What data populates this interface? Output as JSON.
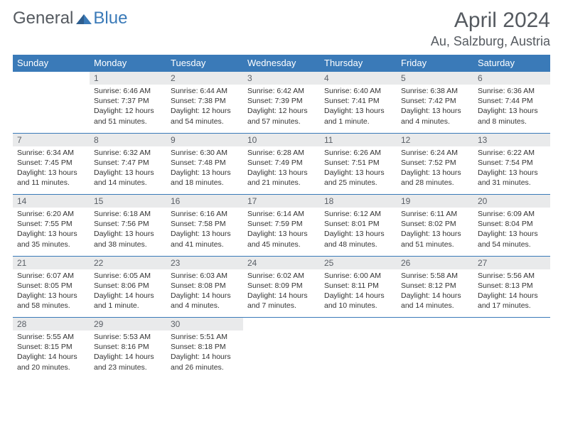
{
  "brand": {
    "part1": "General",
    "part2": "Blue"
  },
  "title": "April 2024",
  "location": "Au, Salzburg, Austria",
  "colors": {
    "header_bg": "#3a7ab8",
    "daynum_bg": "#e9eaeb",
    "text": "#333333"
  },
  "day_headers": [
    "Sunday",
    "Monday",
    "Tuesday",
    "Wednesday",
    "Thursday",
    "Friday",
    "Saturday"
  ],
  "weeks": [
    {
      "nums": [
        "",
        "1",
        "2",
        "3",
        "4",
        "5",
        "6"
      ],
      "cells": [
        {},
        {
          "sr": "Sunrise: 6:46 AM",
          "ss": "Sunset: 7:37 PM",
          "dl1": "Daylight: 12 hours",
          "dl2": "and 51 minutes."
        },
        {
          "sr": "Sunrise: 6:44 AM",
          "ss": "Sunset: 7:38 PM",
          "dl1": "Daylight: 12 hours",
          "dl2": "and 54 minutes."
        },
        {
          "sr": "Sunrise: 6:42 AM",
          "ss": "Sunset: 7:39 PM",
          "dl1": "Daylight: 12 hours",
          "dl2": "and 57 minutes."
        },
        {
          "sr": "Sunrise: 6:40 AM",
          "ss": "Sunset: 7:41 PM",
          "dl1": "Daylight: 13 hours",
          "dl2": "and 1 minute."
        },
        {
          "sr": "Sunrise: 6:38 AM",
          "ss": "Sunset: 7:42 PM",
          "dl1": "Daylight: 13 hours",
          "dl2": "and 4 minutes."
        },
        {
          "sr": "Sunrise: 6:36 AM",
          "ss": "Sunset: 7:44 PM",
          "dl1": "Daylight: 13 hours",
          "dl2": "and 8 minutes."
        }
      ]
    },
    {
      "nums": [
        "7",
        "8",
        "9",
        "10",
        "11",
        "12",
        "13"
      ],
      "cells": [
        {
          "sr": "Sunrise: 6:34 AM",
          "ss": "Sunset: 7:45 PM",
          "dl1": "Daylight: 13 hours",
          "dl2": "and 11 minutes."
        },
        {
          "sr": "Sunrise: 6:32 AM",
          "ss": "Sunset: 7:47 PM",
          "dl1": "Daylight: 13 hours",
          "dl2": "and 14 minutes."
        },
        {
          "sr": "Sunrise: 6:30 AM",
          "ss": "Sunset: 7:48 PM",
          "dl1": "Daylight: 13 hours",
          "dl2": "and 18 minutes."
        },
        {
          "sr": "Sunrise: 6:28 AM",
          "ss": "Sunset: 7:49 PM",
          "dl1": "Daylight: 13 hours",
          "dl2": "and 21 minutes."
        },
        {
          "sr": "Sunrise: 6:26 AM",
          "ss": "Sunset: 7:51 PM",
          "dl1": "Daylight: 13 hours",
          "dl2": "and 25 minutes."
        },
        {
          "sr": "Sunrise: 6:24 AM",
          "ss": "Sunset: 7:52 PM",
          "dl1": "Daylight: 13 hours",
          "dl2": "and 28 minutes."
        },
        {
          "sr": "Sunrise: 6:22 AM",
          "ss": "Sunset: 7:54 PM",
          "dl1": "Daylight: 13 hours",
          "dl2": "and 31 minutes."
        }
      ]
    },
    {
      "nums": [
        "14",
        "15",
        "16",
        "17",
        "18",
        "19",
        "20"
      ],
      "cells": [
        {
          "sr": "Sunrise: 6:20 AM",
          "ss": "Sunset: 7:55 PM",
          "dl1": "Daylight: 13 hours",
          "dl2": "and 35 minutes."
        },
        {
          "sr": "Sunrise: 6:18 AM",
          "ss": "Sunset: 7:56 PM",
          "dl1": "Daylight: 13 hours",
          "dl2": "and 38 minutes."
        },
        {
          "sr": "Sunrise: 6:16 AM",
          "ss": "Sunset: 7:58 PM",
          "dl1": "Daylight: 13 hours",
          "dl2": "and 41 minutes."
        },
        {
          "sr": "Sunrise: 6:14 AM",
          "ss": "Sunset: 7:59 PM",
          "dl1": "Daylight: 13 hours",
          "dl2": "and 45 minutes."
        },
        {
          "sr": "Sunrise: 6:12 AM",
          "ss": "Sunset: 8:01 PM",
          "dl1": "Daylight: 13 hours",
          "dl2": "and 48 minutes."
        },
        {
          "sr": "Sunrise: 6:11 AM",
          "ss": "Sunset: 8:02 PM",
          "dl1": "Daylight: 13 hours",
          "dl2": "and 51 minutes."
        },
        {
          "sr": "Sunrise: 6:09 AM",
          "ss": "Sunset: 8:04 PM",
          "dl1": "Daylight: 13 hours",
          "dl2": "and 54 minutes."
        }
      ]
    },
    {
      "nums": [
        "21",
        "22",
        "23",
        "24",
        "25",
        "26",
        "27"
      ],
      "cells": [
        {
          "sr": "Sunrise: 6:07 AM",
          "ss": "Sunset: 8:05 PM",
          "dl1": "Daylight: 13 hours",
          "dl2": "and 58 minutes."
        },
        {
          "sr": "Sunrise: 6:05 AM",
          "ss": "Sunset: 8:06 PM",
          "dl1": "Daylight: 14 hours",
          "dl2": "and 1 minute."
        },
        {
          "sr": "Sunrise: 6:03 AM",
          "ss": "Sunset: 8:08 PM",
          "dl1": "Daylight: 14 hours",
          "dl2": "and 4 minutes."
        },
        {
          "sr": "Sunrise: 6:02 AM",
          "ss": "Sunset: 8:09 PM",
          "dl1": "Daylight: 14 hours",
          "dl2": "and 7 minutes."
        },
        {
          "sr": "Sunrise: 6:00 AM",
          "ss": "Sunset: 8:11 PM",
          "dl1": "Daylight: 14 hours",
          "dl2": "and 10 minutes."
        },
        {
          "sr": "Sunrise: 5:58 AM",
          "ss": "Sunset: 8:12 PM",
          "dl1": "Daylight: 14 hours",
          "dl2": "and 14 minutes."
        },
        {
          "sr": "Sunrise: 5:56 AM",
          "ss": "Sunset: 8:13 PM",
          "dl1": "Daylight: 14 hours",
          "dl2": "and 17 minutes."
        }
      ]
    },
    {
      "nums": [
        "28",
        "29",
        "30",
        "",
        "",
        "",
        ""
      ],
      "cells": [
        {
          "sr": "Sunrise: 5:55 AM",
          "ss": "Sunset: 8:15 PM",
          "dl1": "Daylight: 14 hours",
          "dl2": "and 20 minutes."
        },
        {
          "sr": "Sunrise: 5:53 AM",
          "ss": "Sunset: 8:16 PM",
          "dl1": "Daylight: 14 hours",
          "dl2": "and 23 minutes."
        },
        {
          "sr": "Sunrise: 5:51 AM",
          "ss": "Sunset: 8:18 PM",
          "dl1": "Daylight: 14 hours",
          "dl2": "and 26 minutes."
        },
        {},
        {},
        {},
        {}
      ]
    }
  ]
}
